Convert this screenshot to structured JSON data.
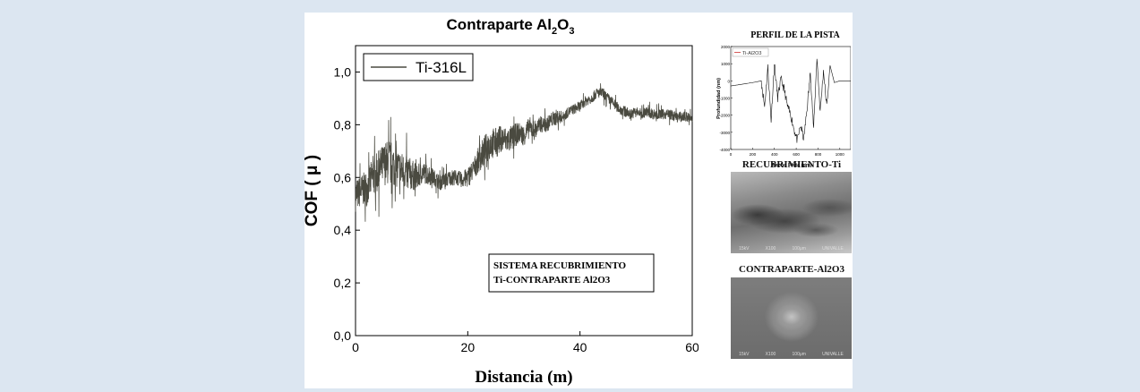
{
  "chart_data": [
    {
      "type": "line",
      "title": "Contraparte Al2O3",
      "title_parts": {
        "base": "Contraparte Al",
        "sub1": "2",
        "mid": "O",
        "sub2": "3"
      },
      "xlabel": "Distancia (m)",
      "ylabel": "COF ( μ )",
      "xlim": [
        0,
        60
      ],
      "ylim": [
        0,
        1.1
      ],
      "x_ticks": [
        0,
        20,
        40,
        60
      ],
      "x_tick_labels": [
        "0",
        "20",
        "40",
        "60"
      ],
      "y_ticks": [
        0,
        0.2,
        0.4,
        0.6,
        0.8,
        1.0
      ],
      "y_tick_labels": [
        "0,0",
        "0,2",
        "0,4",
        "0,6",
        "0,8",
        "1,0"
      ],
      "legend": {
        "label": "Ti-316L",
        "position": "top-left"
      },
      "annotation": [
        "SISTEMA RECUBRIMIENTO",
        "Ti-CONTRAPARTE Al2O3"
      ],
      "series": [
        {
          "name": "Ti-316L",
          "color": "#4a4a40",
          "x": [
            0,
            1,
            2,
            3,
            4,
            5,
            6,
            7,
            8,
            9,
            10,
            11,
            12,
            13,
            14,
            15,
            16,
            17,
            18,
            19,
            20,
            21,
            22,
            23,
            24,
            25,
            26,
            27,
            28,
            29,
            30,
            31,
            32,
            33,
            34,
            35,
            36,
            37,
            38,
            39,
            40,
            41,
            42,
            43,
            44,
            45,
            46,
            47,
            48,
            49,
            50,
            51,
            52,
            53,
            54,
            55,
            56,
            57,
            58,
            59,
            60
          ],
          "y": [
            0.53,
            0.55,
            0.56,
            0.6,
            0.62,
            0.65,
            0.66,
            0.64,
            0.63,
            0.62,
            0.61,
            0.6,
            0.62,
            0.61,
            0.6,
            0.58,
            0.59,
            0.6,
            0.6,
            0.59,
            0.6,
            0.63,
            0.67,
            0.7,
            0.73,
            0.73,
            0.75,
            0.74,
            0.75,
            0.77,
            0.76,
            0.79,
            0.78,
            0.8,
            0.8,
            0.82,
            0.83,
            0.83,
            0.85,
            0.86,
            0.87,
            0.89,
            0.9,
            0.92,
            0.92,
            0.9,
            0.88,
            0.86,
            0.85,
            0.84,
            0.85,
            0.84,
            0.85,
            0.84,
            0.84,
            0.84,
            0.84,
            0.83,
            0.83,
            0.83,
            0.82
          ],
          "noise_amplitude": [
            0.06,
            0.06,
            0.07,
            0.07,
            0.08,
            0.08,
            0.09,
            0.08,
            0.07,
            0.07,
            0.06,
            0.05,
            0.04,
            0.04,
            0.03,
            0.03,
            0.03,
            0.03,
            0.03,
            0.03,
            0.04,
            0.04,
            0.05,
            0.06,
            0.06,
            0.06,
            0.05,
            0.05,
            0.05,
            0.04,
            0.04,
            0.04,
            0.04,
            0.03,
            0.03,
            0.03,
            0.03,
            0.02,
            0.02,
            0.02,
            0.02,
            0.02,
            0.02,
            0.02,
            0.02,
            0.02,
            0.02,
            0.02,
            0.02,
            0.02,
            0.02,
            0.02,
            0.02,
            0.02,
            0.02,
            0.02,
            0.02,
            0.02,
            0.02,
            0.02,
            0.02
          ]
        }
      ]
    },
    {
      "type": "line",
      "title": "PERFIL DE LA PISTA",
      "xlabel": "Ancho Pista (μm)",
      "ylabel": "Profundidad (nm)",
      "xlim": [
        0,
        1100
      ],
      "ylim": [
        -4000,
        2000
      ],
      "x_tick_labels": [
        "0",
        "200",
        "400",
        "600",
        "800",
        "1000"
      ],
      "y_tick_labels": [
        "2000",
        "1000",
        "0",
        "-1000",
        "-2000",
        "-3000",
        "-4000"
      ],
      "legend": {
        "label": "Ti-Al2O3",
        "position": "top-left"
      },
      "series": [
        {
          "name": "Ti-Al2O3",
          "color": "#111111",
          "x": [
            0,
            100,
            200,
            280,
            310,
            340,
            370,
            400,
            430,
            460,
            490,
            520,
            550,
            580,
            610,
            640,
            670,
            700,
            730,
            760,
            790,
            820,
            850,
            880,
            910,
            950,
            1000,
            1050,
            1100
          ],
          "y": [
            -300,
            -200,
            -100,
            0,
            -1500,
            800,
            -2300,
            1000,
            -1000,
            100,
            -500,
            -1500,
            -2000,
            -2800,
            -3500,
            -2600,
            -3400,
            -1600,
            500,
            -2800,
            1400,
            -1800,
            600,
            -1500,
            900,
            -100,
            0,
            0,
            0
          ]
        }
      ]
    }
  ],
  "photos": {
    "coating": {
      "label": "RECUBRIMIENTO-Ti",
      "caption": [
        "15kV",
        "X100",
        "100μm",
        "UNIVALLE"
      ]
    },
    "counterpart": {
      "label": "CONTRAPARTE-Al2O3",
      "caption": [
        "15kV",
        "X100",
        "100μm",
        "UNIVALLE"
      ]
    }
  }
}
